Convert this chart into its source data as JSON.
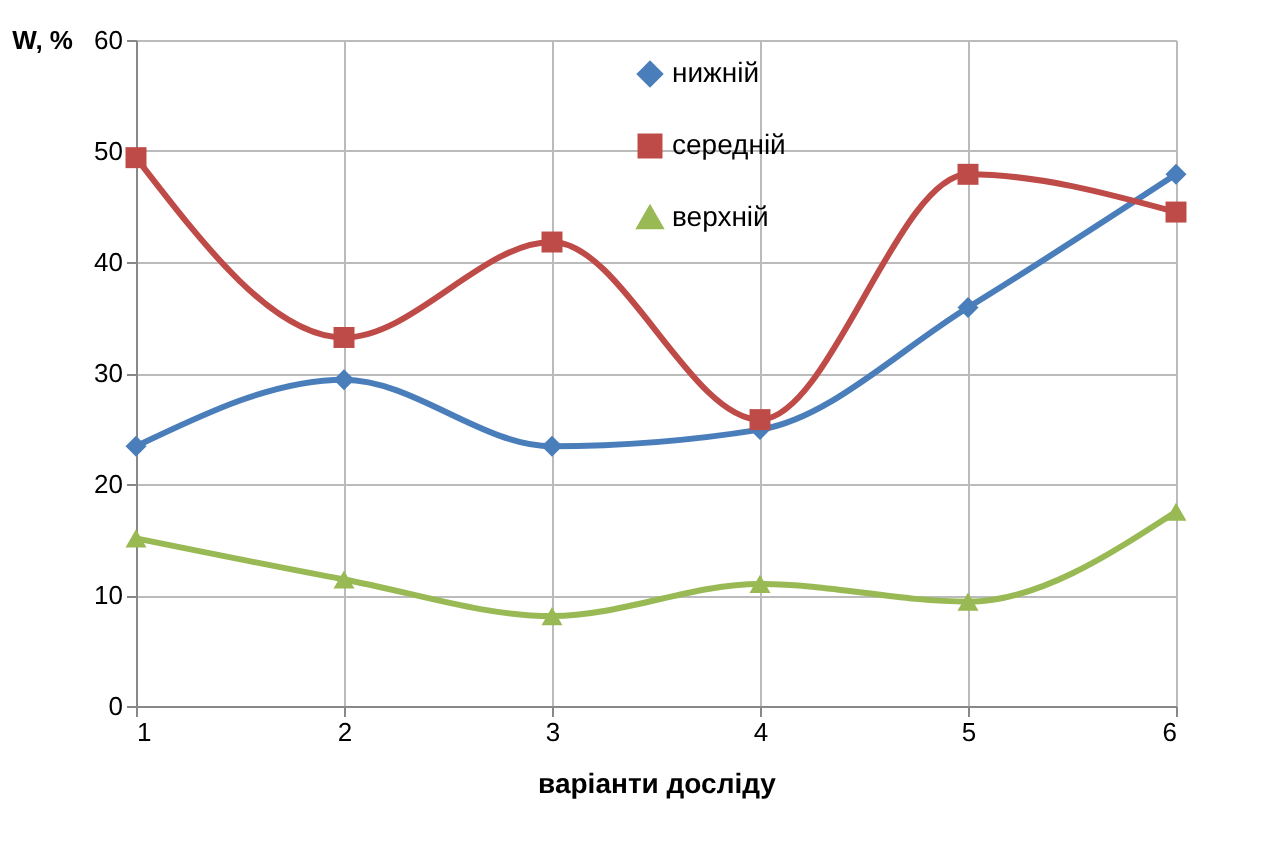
{
  "chart_data": {
    "type": "line",
    "xlabel": "варіанти  досліду",
    "ylabel": "W, %",
    "x": [
      1,
      2,
      3,
      4,
      5,
      6
    ],
    "xlim": [
      1,
      6
    ],
    "xticks": [
      1,
      2,
      3,
      4,
      5,
      6
    ],
    "ylim": [
      0,
      60
    ],
    "yticks": [
      0,
      10,
      20,
      30,
      40,
      50,
      60
    ],
    "grid": true,
    "legend": "top right",
    "line_style": "solid",
    "series": [
      {
        "name": "нижній",
        "color": "#4a7ebb",
        "marker": "diamond",
        "values": [
          23.4,
          29.4,
          23.4,
          24.9,
          35.9,
          47.9
        ]
      },
      {
        "name": "середній",
        "color": "#be4b48",
        "marker": "square",
        "values": [
          49.4,
          33.2,
          41.8,
          25.8,
          47.9,
          44.5
        ]
      },
      {
        "name": "верхній",
        "color": "#98b954",
        "marker": "triangle",
        "values": [
          15.1,
          11.4,
          8.1,
          11,
          9.4,
          17.5
        ]
      }
    ]
  }
}
